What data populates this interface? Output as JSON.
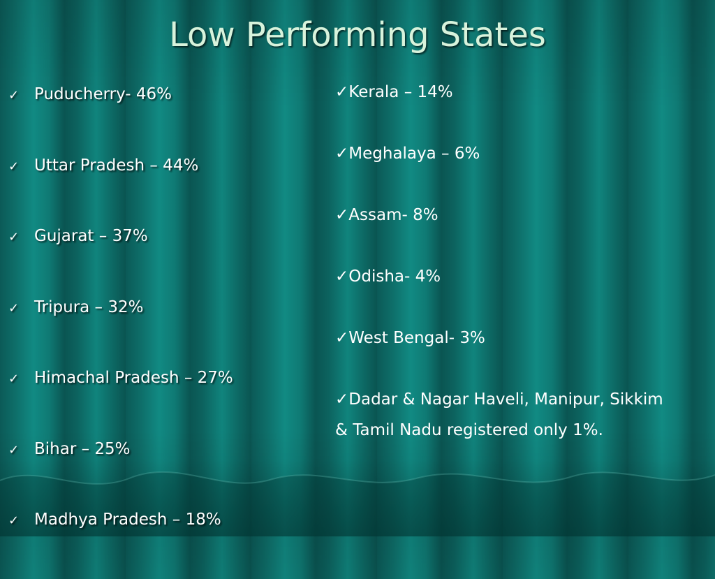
{
  "title": "Low Performing States",
  "bullet_icon": "check-mark-icon",
  "left_items": [
    "Puducherry- 46%",
    "Uttar Pradesh – 44%",
    "Gujarat – 37%",
    "Tripura – 32%",
    "Himachal Pradesh – 27%",
    "Bihar – 25%",
    "Madhya Pradesh – 18%"
  ],
  "right_items": [
    "✓Kerala – 14%",
    "✓Meghalaya – 6%",
    "✓Assam- 8%",
    "✓Odisha- 4%",
    "✓West Bengal- 3%",
    "✓Dadar & Nagar Haveli, Manipur, Sikkim & Tamil Nadu registered only 1%."
  ]
}
